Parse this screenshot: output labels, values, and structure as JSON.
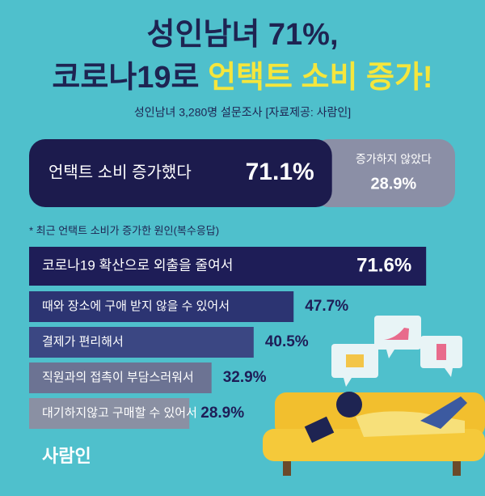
{
  "title_line1": "성인남녀 71%,",
  "title_line2a": "코로나19로 ",
  "title_line2b": "언택트 소비 증가!",
  "subtitle": "성인남녀 3,280명 설문조사  [자료제공: 사람인]",
  "logo": "사람인",
  "chart_data": [
    {
      "type": "stacked-bar",
      "categories": [
        "언택트 소비 증가했다",
        "증가하지 않았다"
      ],
      "values": [
        71.1,
        28.9
      ],
      "value_labels": [
        "71.1%",
        "28.9%"
      ],
      "colors": [
        "#1c1b4d",
        "#8b8fa6"
      ]
    },
    {
      "type": "hbar",
      "title": "* 최근 언택트 소비가 증가한 원인(복수응답)",
      "categories": [
        "코로나19 확산으로 외출을 줄여서",
        "때와 장소에 구애 받지 않을 수 있어서",
        "결제가 편리해서",
        "직원과의 접촉이 부담스러워서",
        "대기하지않고 구매할 수 있어서"
      ],
      "values": [
        71.6,
        47.7,
        40.5,
        32.9,
        28.9
      ],
      "value_labels": [
        "71.6%",
        "47.7%",
        "40.5%",
        "32.9%",
        "28.9%"
      ],
      "colors": [
        "#1e1d57",
        "#2c3472",
        "#3b4783",
        "#6c7393",
        "#8a90a3"
      ]
    }
  ]
}
